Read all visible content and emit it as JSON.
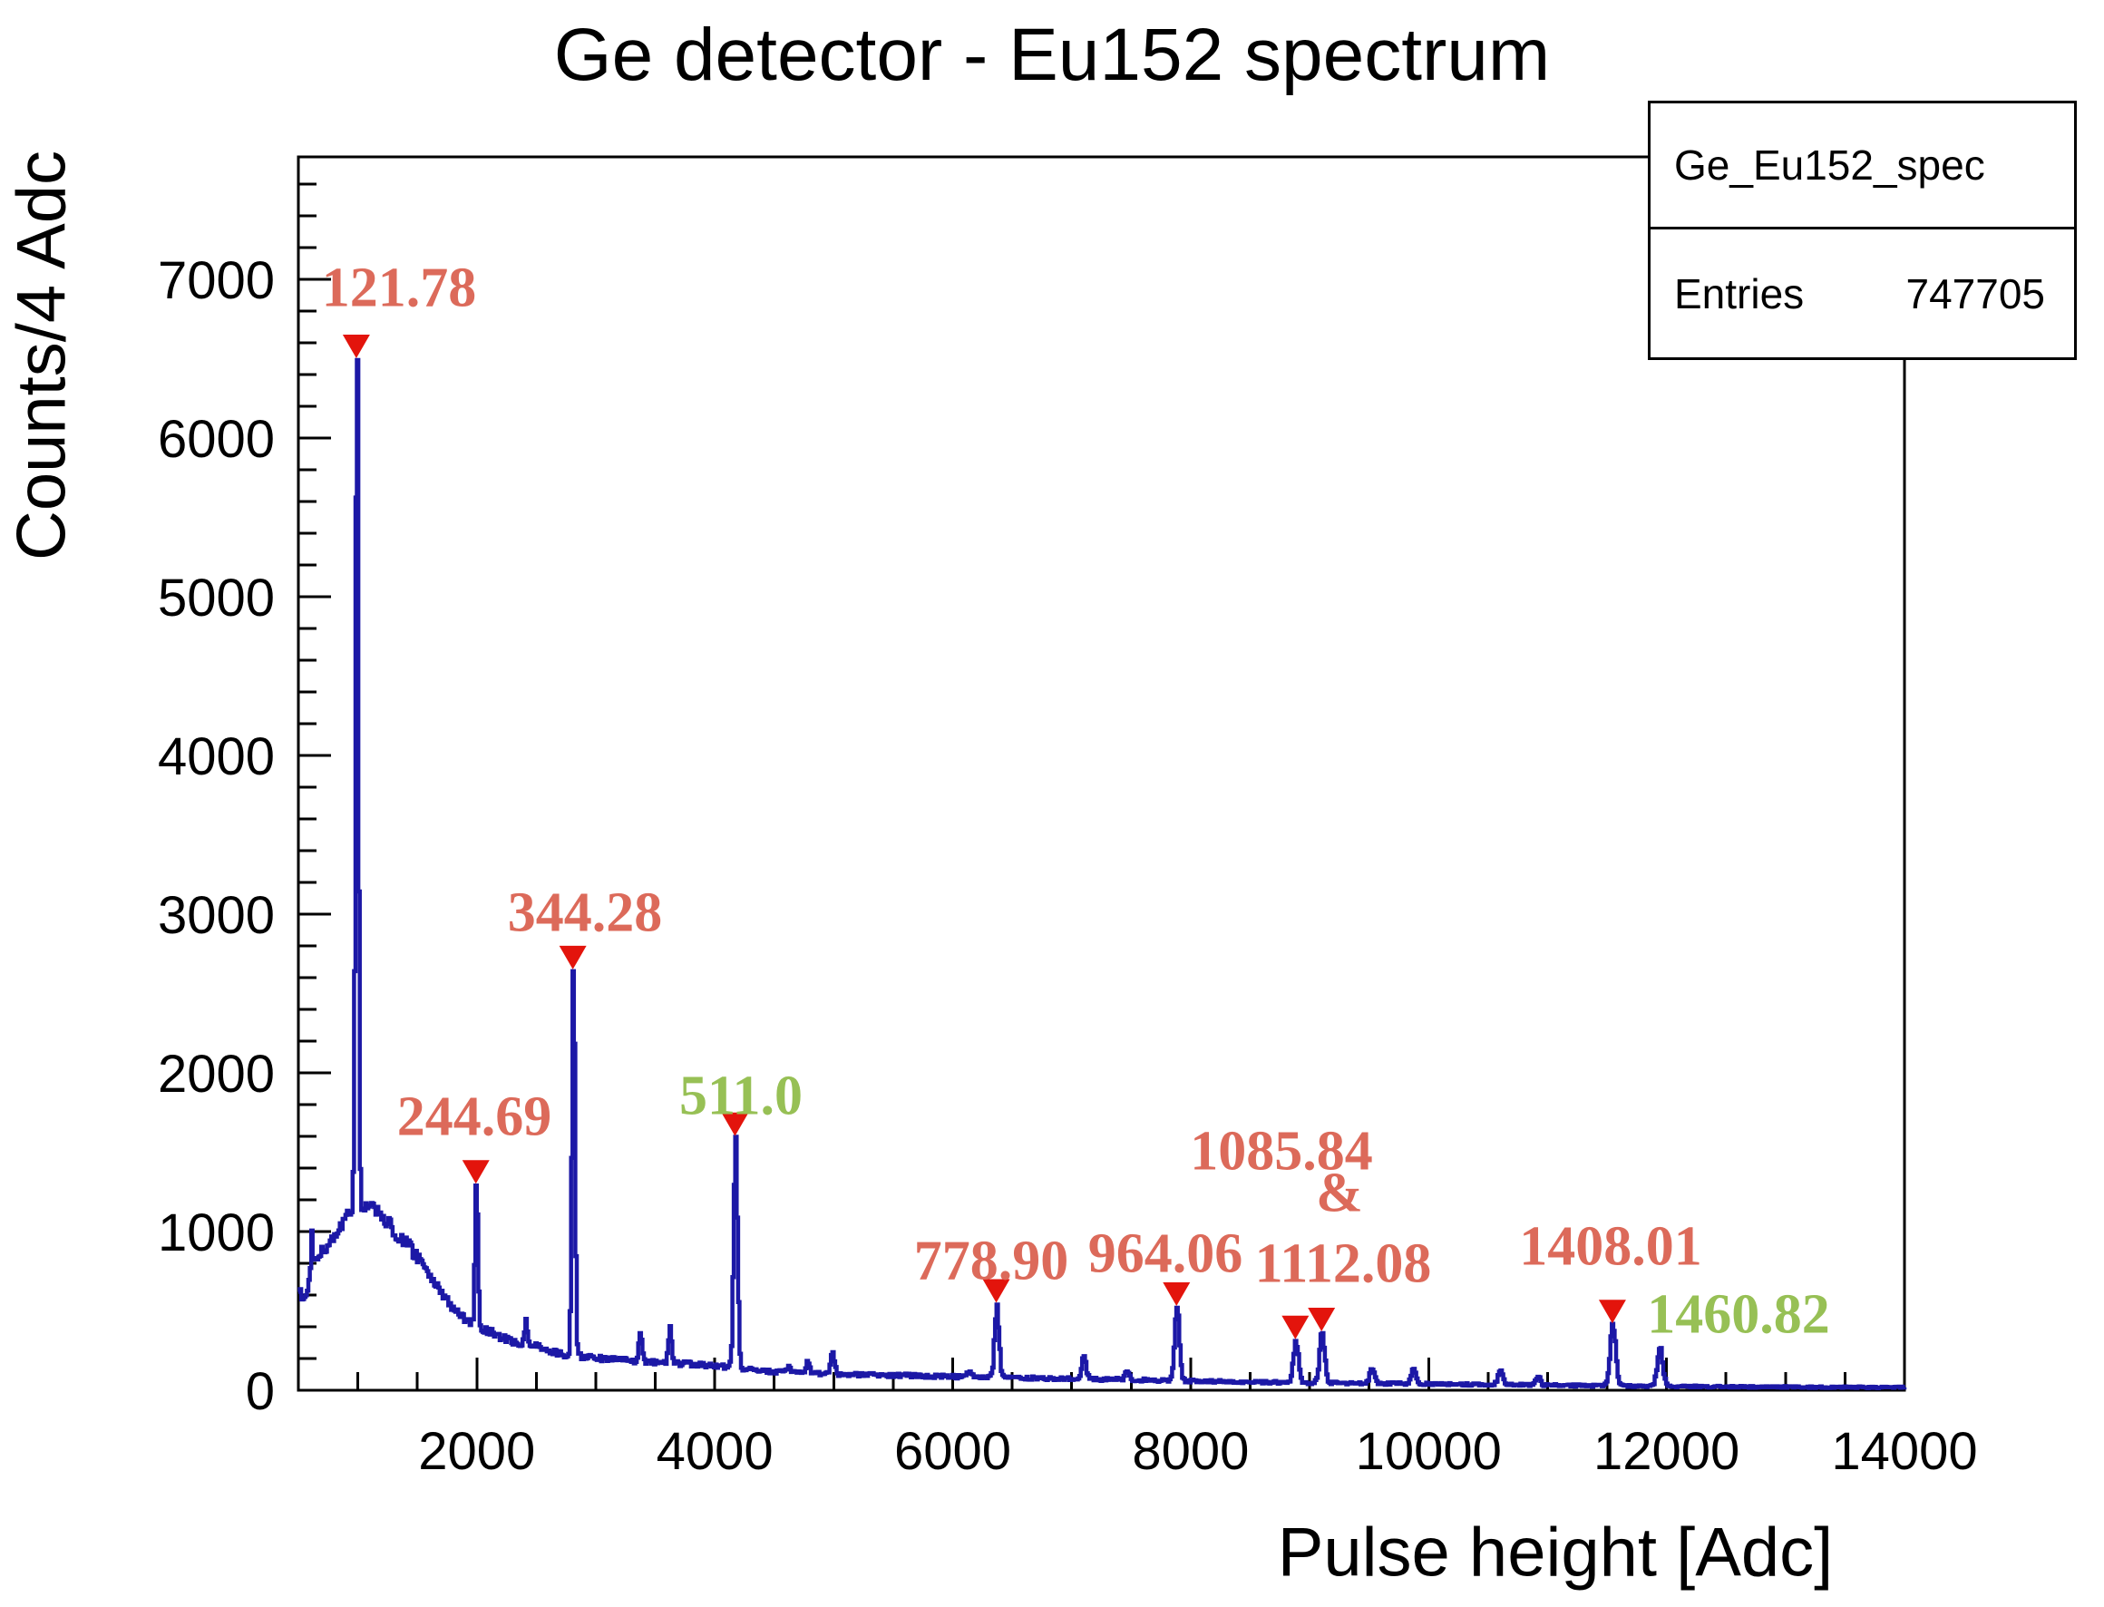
{
  "title": "Ge detector - Eu152 spectrum",
  "stats_box": {
    "histogram_name": "Ge_Eu152_spec",
    "entries_label": "Entries",
    "entries_value": "747705"
  },
  "colors": {
    "curve": "#1c18a6",
    "marker": "#e3140c",
    "label_red": "#dc6a5a",
    "label_green": "#97c055",
    "axis": "#000000",
    "background": "#ffffff"
  },
  "chart_data": {
    "type": "line",
    "subtype": "histogram-spectrum",
    "title": "Ge detector - Eu152 spectrum",
    "xlabel": "Pulse height [Adc]",
    "ylabel": "Counts/4 Adc",
    "xlim": [
      500,
      14000
    ],
    "ylim": [
      0,
      7770
    ],
    "x_major_ticks": [
      2000,
      4000,
      6000,
      8000,
      10000,
      12000,
      14000
    ],
    "x_minor_step": 500,
    "y_major_ticks": [
      0,
      1000,
      2000,
      3000,
      4000,
      5000,
      6000,
      7000
    ],
    "y_minor_step": 200,
    "grid": false,
    "series_name": "Ge_Eu152_spec",
    "peaks": [
      {
        "energy_kev": "121.78",
        "adc": 987,
        "counts": 6490,
        "sigma": 12,
        "marker": true
      },
      {
        "energy_kev": "244.69",
        "adc": 1992,
        "counts": 1290,
        "sigma": 12,
        "marker": true
      },
      {
        "energy_kev": "344.28",
        "adc": 2807,
        "counts": 2640,
        "sigma": 13,
        "marker": true
      },
      {
        "energy_kev": "511.0",
        "adc": 4170,
        "counts": 1590,
        "sigma": 16,
        "marker": true
      },
      {
        "energy_kev": "778.90",
        "adc": 6366,
        "counts": 540,
        "sigma": 18,
        "marker": true
      },
      {
        "energy_kev": "964.06",
        "adc": 7881,
        "counts": 520,
        "sigma": 20,
        "marker": true
      },
      {
        "energy_kev": "1085.84",
        "adc": 8880,
        "counts": 310,
        "sigma": 21,
        "marker": true
      },
      {
        "energy_kev": "1112.08",
        "adc": 9100,
        "counts": 360,
        "sigma": 21,
        "marker": true
      },
      {
        "energy_kev": "1408.01",
        "adc": 11545,
        "counts": 410,
        "sigma": 23,
        "marker": true
      },
      {
        "energy_kev": "1460.82",
        "adc": 11940,
        "counts": 260,
        "sigma": 23,
        "marker": false
      }
    ],
    "annotations": [
      {
        "text": "121.78",
        "color": "red"
      },
      {
        "text": "244.69",
        "color": "red"
      },
      {
        "text": "344.28",
        "color": "red"
      },
      {
        "text": "511.0",
        "color": "green"
      },
      {
        "text": "778.90",
        "color": "red"
      },
      {
        "text": "964.06",
        "color": "red"
      },
      {
        "text": "1085.84",
        "color": "red"
      },
      {
        "text": "&",
        "color": "red"
      },
      {
        "text": "1112.08",
        "color": "red"
      },
      {
        "text": "1408.01",
        "color": "red"
      },
      {
        "text": "1460.82",
        "color": "green"
      }
    ],
    "minor_peaks": [
      [
        607,
        970,
        7
      ],
      [
        2409,
        450,
        12
      ],
      [
        3372,
        360,
        14
      ],
      [
        3619,
        400,
        14
      ],
      [
        4613,
        150,
        15
      ],
      [
        4775,
        185,
        15
      ],
      [
        4985,
        230,
        16
      ],
      [
        6135,
        115,
        16
      ],
      [
        7097,
        215,
        18
      ],
      [
        7463,
        115,
        18
      ],
      [
        9520,
        130,
        20
      ],
      [
        9870,
        135,
        20
      ],
      [
        10600,
        125,
        21
      ],
      [
        10914,
        85,
        18
      ]
    ],
    "continuum": [
      [
        500,
        615
      ],
      [
        540,
        588
      ],
      [
        580,
        650
      ],
      [
        620,
        780
      ],
      [
        660,
        845
      ],
      [
        700,
        885
      ],
      [
        760,
        930
      ],
      [
        820,
        975
      ],
      [
        880,
        1060
      ],
      [
        930,
        1130
      ],
      [
        965,
        1160
      ],
      [
        1010,
        1145
      ],
      [
        1100,
        1150
      ],
      [
        1200,
        1105
      ],
      [
        1300,
        1000
      ],
      [
        1400,
        930
      ],
      [
        1500,
        830
      ],
      [
        1600,
        715
      ],
      [
        1700,
        610
      ],
      [
        1800,
        510
      ],
      [
        1900,
        445
      ],
      [
        1970,
        412
      ],
      [
        2040,
        392
      ],
      [
        2150,
        350
      ],
      [
        2250,
        322
      ],
      [
        2350,
        298
      ],
      [
        2500,
        276
      ],
      [
        2620,
        246
      ],
      [
        2730,
        226
      ],
      [
        2900,
        211
      ],
      [
        3000,
        202
      ],
      [
        3150,
        192
      ],
      [
        3300,
        183
      ],
      [
        3450,
        177
      ],
      [
        3600,
        170
      ],
      [
        3750,
        166
      ],
      [
        3900,
        159
      ],
      [
        4050,
        151
      ],
      [
        4200,
        140
      ],
      [
        4350,
        128
      ],
      [
        4500,
        117
      ],
      [
        4650,
        110
      ],
      [
        4800,
        106
      ],
      [
        4950,
        103
      ],
      [
        5150,
        100
      ],
      [
        5400,
        96
      ],
      [
        5700,
        92
      ],
      [
        5950,
        87
      ],
      [
        6150,
        84
      ],
      [
        6300,
        82
      ],
      [
        6450,
        79
      ],
      [
        6700,
        76
      ],
      [
        6950,
        73
      ],
      [
        7200,
        70
      ],
      [
        7400,
        67
      ],
      [
        7650,
        63
      ],
      [
        7900,
        59
      ],
      [
        8050,
        57
      ],
      [
        8300,
        54
      ],
      [
        8600,
        51
      ],
      [
        8850,
        49
      ],
      [
        9100,
        47
      ],
      [
        9300,
        45
      ],
      [
        9550,
        43
      ],
      [
        9750,
        42
      ],
      [
        10000,
        40
      ],
      [
        10300,
        37
      ],
      [
        10600,
        35
      ],
      [
        10900,
        33
      ],
      [
        11200,
        30
      ],
      [
        11450,
        29
      ],
      [
        11700,
        27
      ],
      [
        11950,
        25
      ],
      [
        12200,
        24
      ],
      [
        12500,
        22
      ],
      [
        12900,
        21
      ],
      [
        13400,
        19
      ],
      [
        14000,
        18
      ]
    ]
  }
}
